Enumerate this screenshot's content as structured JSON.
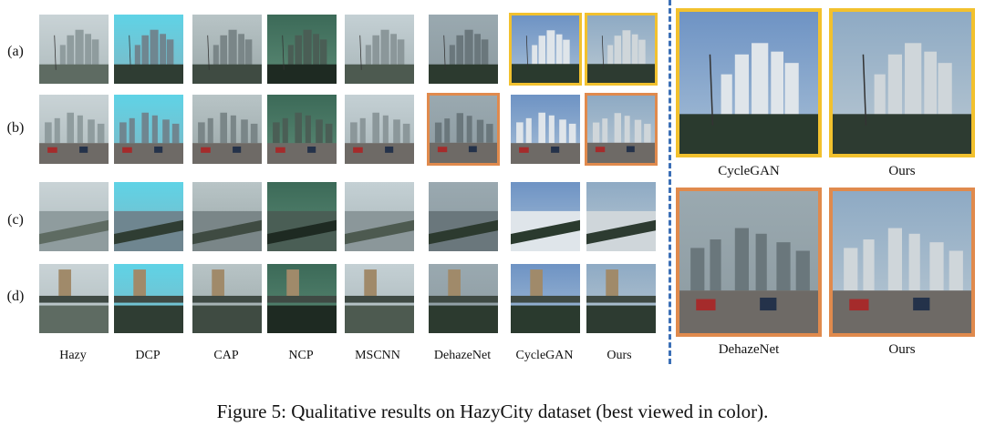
{
  "figure": {
    "caption": "Figure 5: Qualitative results on HazyCity dataset (best viewed in color).",
    "row_labels": [
      "(a)",
      "(b)",
      "(c)",
      "(d)"
    ],
    "column_labels": [
      "Hazy",
      "DCP",
      "CAP",
      "NCP",
      "MSCNN",
      "DehazeNet",
      "CycleGAN",
      "Ours"
    ],
    "zoom_labels": {
      "top_left": "CycleGAN",
      "top_right": "Ours",
      "bottom_left": "DehazeNet",
      "bottom_right": "Ours"
    },
    "colors": {
      "highlight_yellow": "#f2c12e",
      "highlight_orange": "#e08a4d",
      "divider": "#3b6fb6"
    }
  }
}
